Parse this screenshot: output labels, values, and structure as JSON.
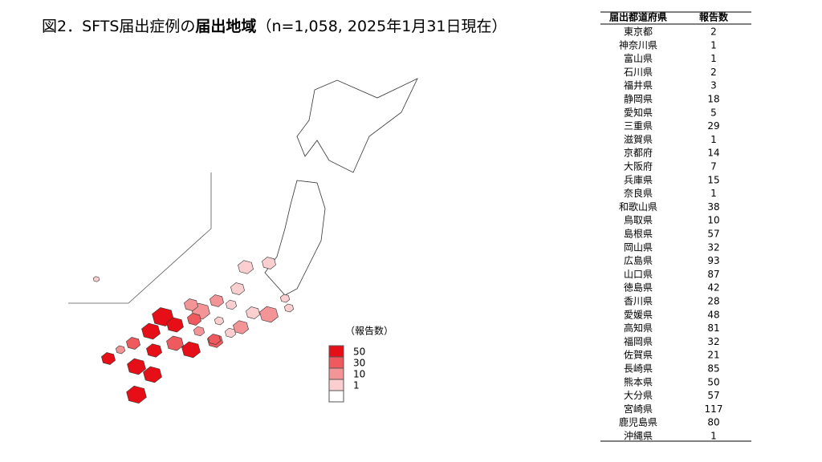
{
  "header": {
    "title_prefix": "図2．SFTS届出症例の",
    "title_bold": "届出地域",
    "title_suffix": "（n=1,058, 2025年1月31日現在）"
  },
  "legend": {
    "title": "（報告数）",
    "thresholds": [
      50,
      30,
      10,
      1
    ],
    "colors": [
      "#e60f17",
      "#ee5a5e",
      "#f39597",
      "#fbcfd0"
    ]
  },
  "table": {
    "columns": [
      "届出都道府県",
      "報告数"
    ],
    "rows": [
      [
        "東京都",
        2
      ],
      [
        "神奈川県",
        1
      ],
      [
        "富山県",
        1
      ],
      [
        "石川県",
        2
      ],
      [
        "福井県",
        3
      ],
      [
        "静岡県",
        18
      ],
      [
        "愛知県",
        5
      ],
      [
        "三重県",
        29
      ],
      [
        "滋賀県",
        1
      ],
      [
        "京都府",
        14
      ],
      [
        "大阪府",
        7
      ],
      [
        "兵庫県",
        15
      ],
      [
        "奈良県",
        1
      ],
      [
        "和歌山県",
        38
      ],
      [
        "鳥取県",
        10
      ],
      [
        "島根県",
        57
      ],
      [
        "岡山県",
        32
      ],
      [
        "広島県",
        93
      ],
      [
        "山口県",
        87
      ],
      [
        "徳島県",
        42
      ],
      [
        "香川県",
        28
      ],
      [
        "愛媛県",
        48
      ],
      [
        "高知県",
        81
      ],
      [
        "福岡県",
        32
      ],
      [
        "佐賀県",
        21
      ],
      [
        "長崎県",
        85
      ],
      [
        "熊本県",
        50
      ],
      [
        "大分県",
        57
      ],
      [
        "宮崎県",
        117
      ],
      [
        "鹿児島県",
        80
      ],
      [
        "沖縄県",
        1
      ]
    ]
  }
}
